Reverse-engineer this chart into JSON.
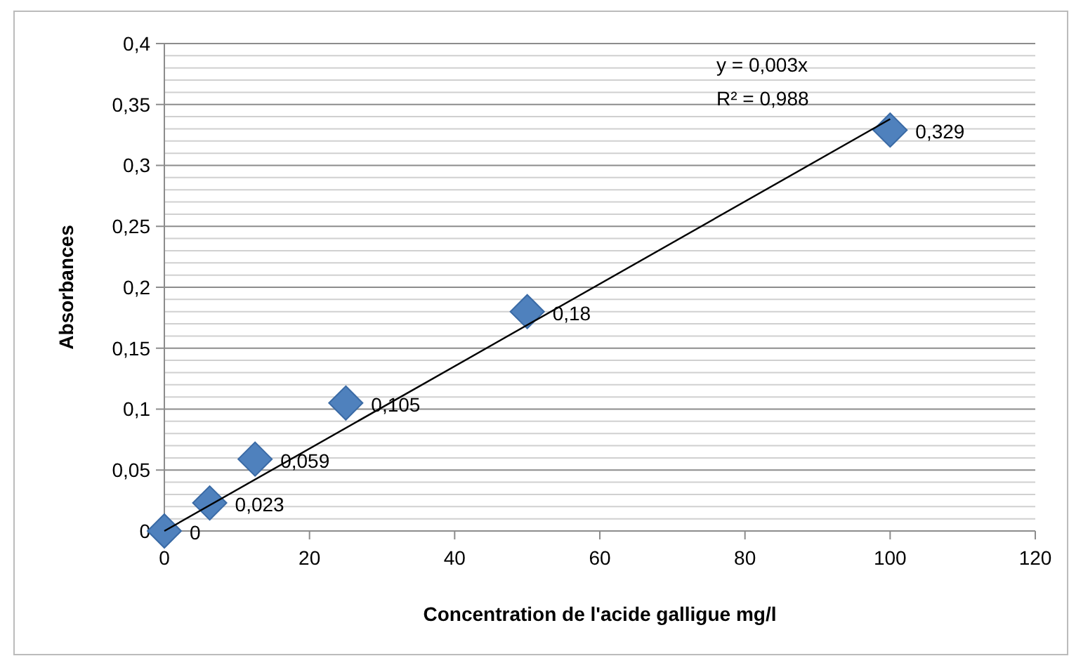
{
  "chart_data": {
    "type": "scatter",
    "xlabel": "Concentration de l'acide galligue mg/l",
    "ylabel": "Absorbances",
    "series": [
      {
        "color": "#4f81bd",
        "marker": "diamond",
        "x": [
          0,
          6.25,
          12.5,
          25,
          50,
          100
        ],
        "values": [
          0,
          0.023,
          0.059,
          0.105,
          0.18,
          0.329
        ],
        "value_labels": [
          "0",
          "0,023",
          "0,059",
          "0,105",
          "0,18",
          "0,329"
        ]
      },
      {
        "type": "line",
        "color": "#000000",
        "marker": "none",
        "x": [
          0,
          100
        ],
        "values": [
          0,
          0.338
        ]
      }
    ],
    "annotations": [
      "y = 0,003x",
      "R² = 0,988"
    ],
    "xlim": [
      0,
      120
    ],
    "xticks": [
      0,
      20,
      40,
      60,
      80,
      100,
      120
    ],
    "ylim": [
      0,
      0.4
    ],
    "yticks": [
      {
        "value": 0,
        "label": "0"
      },
      {
        "value": 0.01,
        "label": null
      },
      {
        "value": 0.02,
        "label": null
      },
      {
        "value": 0.03,
        "label": null
      },
      {
        "value": 0.04,
        "label": null
      },
      {
        "value": 0.05,
        "label": "0,05"
      },
      {
        "value": 0.06,
        "label": null
      },
      {
        "value": 0.07,
        "label": null
      },
      {
        "value": 0.08,
        "label": null
      },
      {
        "value": 0.09,
        "label": null
      },
      {
        "value": 0.1,
        "label": "0,1"
      },
      {
        "value": 0.11,
        "label": null
      },
      {
        "value": 0.12,
        "label": null
      },
      {
        "value": 0.13,
        "label": null
      },
      {
        "value": 0.14,
        "label": null
      },
      {
        "value": 0.15,
        "label": "0,15"
      },
      {
        "value": 0.16,
        "label": null
      },
      {
        "value": 0.17,
        "label": null
      },
      {
        "value": 0.18,
        "label": null
      },
      {
        "value": 0.19,
        "label": null
      },
      {
        "value": 0.2,
        "label": "0,2"
      },
      {
        "value": 0.21,
        "label": null
      },
      {
        "value": 0.22,
        "label": null
      },
      {
        "value": 0.23,
        "label": null
      },
      {
        "value": 0.24,
        "label": null
      },
      {
        "value": 0.25,
        "label": "0,25"
      },
      {
        "value": 0.26,
        "label": null
      },
      {
        "value": 0.27,
        "label": null
      },
      {
        "value": 0.28,
        "label": null
      },
      {
        "value": 0.29,
        "label": null
      },
      {
        "value": 0.3,
        "label": "0,3"
      },
      {
        "value": 0.31,
        "label": null
      },
      {
        "value": 0.32,
        "label": null
      },
      {
        "value": 0.33,
        "label": null
      },
      {
        "value": 0.34,
        "label": null
      },
      {
        "value": 0.35,
        "label": "0,35"
      },
      {
        "value": 0.36,
        "label": null
      },
      {
        "value": 0.37,
        "label": null
      },
      {
        "value": 0.38,
        "label": null
      },
      {
        "value": 0.39,
        "label": null
      },
      {
        "value": 0.4,
        "label": "0,4"
      }
    ],
    "grid": "y"
  }
}
